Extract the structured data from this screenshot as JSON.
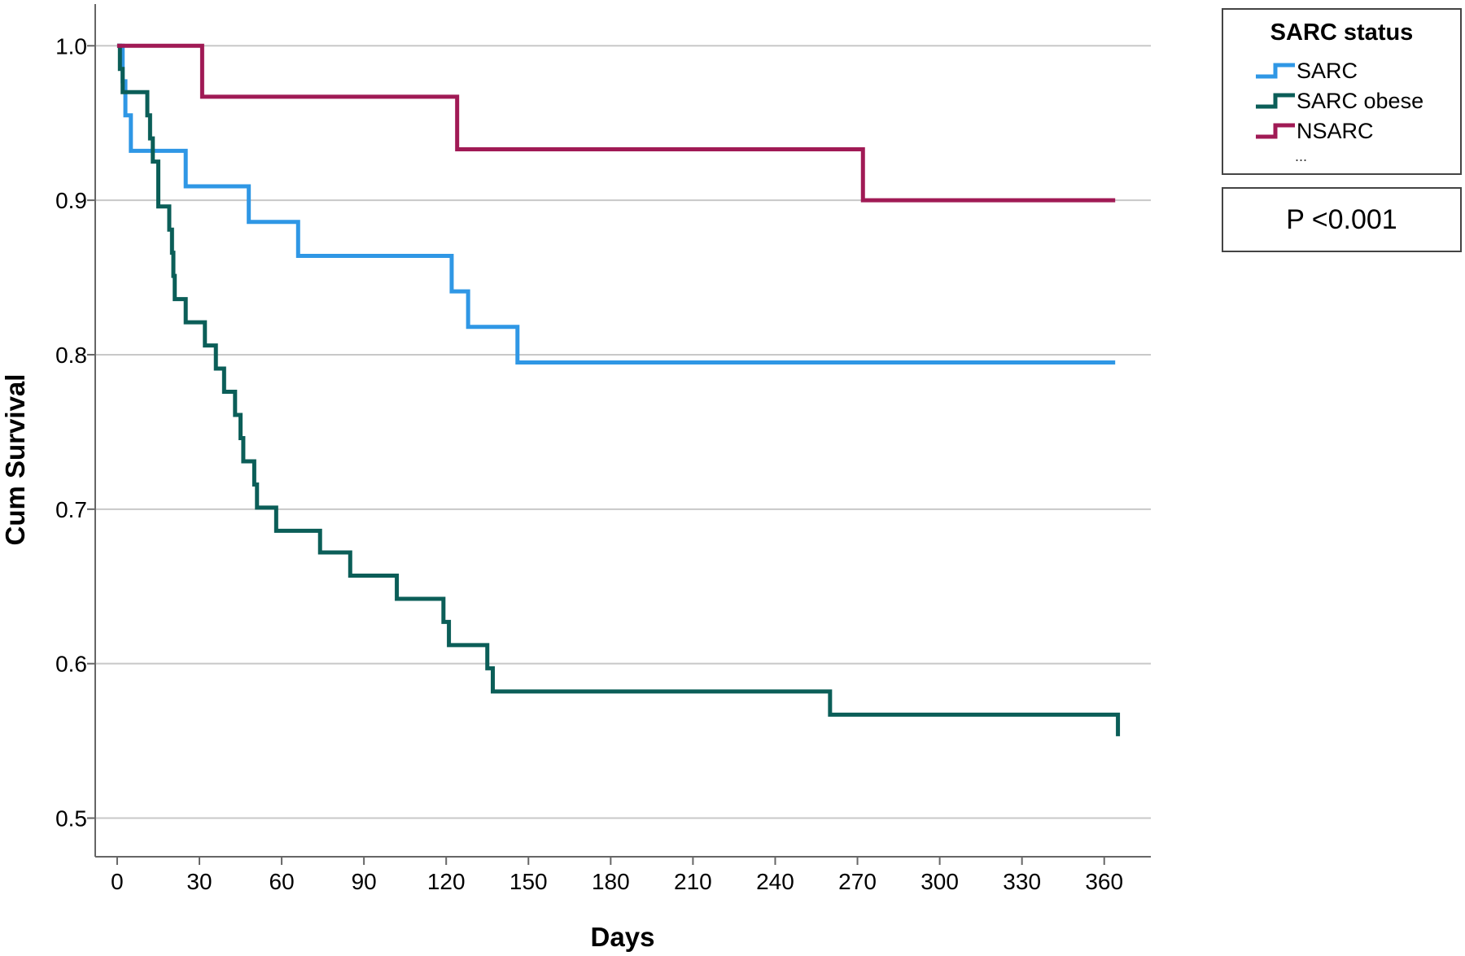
{
  "chart_data": {
    "type": "line",
    "step": true,
    "xlabel": "Days",
    "ylabel": "Cum Survival",
    "xlim": [
      -8,
      377
    ],
    "ylim": [
      0.475,
      1.027
    ],
    "xticks": [
      0,
      30,
      60,
      90,
      120,
      150,
      180,
      210,
      240,
      270,
      300,
      330,
      360
    ],
    "yticks": [
      0.5,
      0.6,
      0.7,
      0.8,
      0.9,
      1.0
    ],
    "ytick_labels": [
      "0.5",
      "0.6",
      "0.7",
      "0.8",
      "0.9",
      "1.0"
    ],
    "grid": "horizontal",
    "legend": {
      "title": "SARC status",
      "position": "top-right outside",
      "more": "..."
    },
    "annotation": "P <0.001",
    "series": [
      {
        "name": "SARC",
        "color": "#2f97e5",
        "points": [
          [
            0,
            1.0
          ],
          [
            2,
            0.977
          ],
          [
            3,
            0.955
          ],
          [
            5,
            0.932
          ],
          [
            25,
            0.909
          ],
          [
            48,
            0.886
          ],
          [
            66,
            0.864
          ],
          [
            122,
            0.841
          ],
          [
            128,
            0.818
          ],
          [
            146,
            0.795
          ],
          [
            364,
            0.795
          ]
        ]
      },
      {
        "name": "SARC obese",
        "color": "#0b5e58",
        "points": [
          [
            0,
            1.0
          ],
          [
            1,
            0.985
          ],
          [
            2,
            0.97
          ],
          [
            11,
            0.955
          ],
          [
            12,
            0.94
          ],
          [
            13,
            0.925
          ],
          [
            15,
            0.896
          ],
          [
            19,
            0.881
          ],
          [
            20,
            0.866
          ],
          [
            20.5,
            0.851
          ],
          [
            21,
            0.836
          ],
          [
            25,
            0.821
          ],
          [
            32,
            0.806
          ],
          [
            36,
            0.791
          ],
          [
            39,
            0.776
          ],
          [
            43,
            0.761
          ],
          [
            45,
            0.746
          ],
          [
            46,
            0.731
          ],
          [
            50,
            0.716
          ],
          [
            51,
            0.701
          ],
          [
            58,
            0.686
          ],
          [
            74,
            0.672
          ],
          [
            85,
            0.657
          ],
          [
            102,
            0.642
          ],
          [
            119,
            0.627
          ],
          [
            121,
            0.612
          ],
          [
            135,
            0.597
          ],
          [
            137,
            0.582
          ],
          [
            260,
            0.567
          ],
          [
            365,
            0.567
          ],
          [
            365,
            0.553
          ]
        ]
      },
      {
        "name": "NSARC",
        "color": "#a01a55",
        "points": [
          [
            0,
            1.0
          ],
          [
            31,
            0.967
          ],
          [
            124,
            0.933
          ],
          [
            272,
            0.9
          ],
          [
            364,
            0.9
          ]
        ]
      }
    ]
  }
}
